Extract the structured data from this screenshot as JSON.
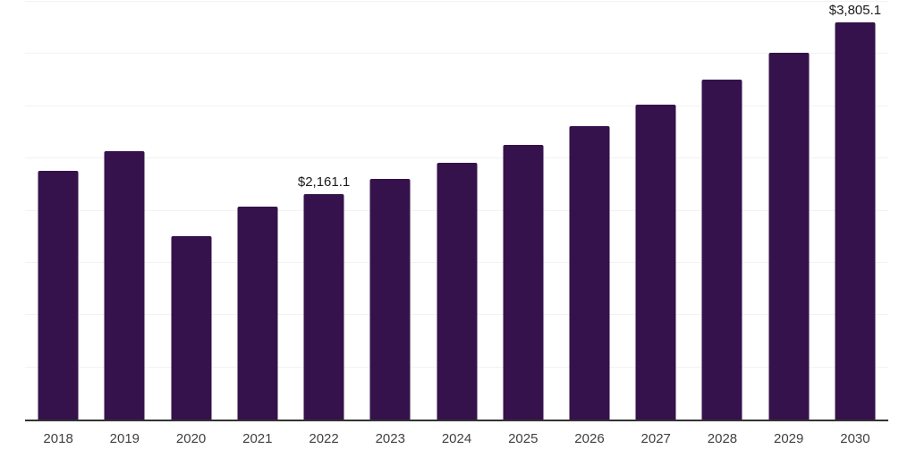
{
  "page": {
    "background_color": "#ffffff"
  },
  "chart_data": {
    "type": "bar",
    "title": "",
    "xlabel": "",
    "ylabel": "",
    "categories": [
      "2018",
      "2019",
      "2020",
      "2021",
      "2022",
      "2023",
      "2024",
      "2025",
      "2026",
      "2027",
      "2028",
      "2029",
      "2030"
    ],
    "values": [
      2385,
      2568,
      1754,
      2041,
      2161.1,
      2304,
      2459,
      2631,
      2807,
      3018,
      3253,
      3516,
      3805.1
    ],
    "data_labels": [
      {
        "category": "2022",
        "text": "$2,161.1"
      },
      {
        "category": "2030",
        "text": "$3,805.1"
      }
    ],
    "ylim": [
      0,
      4000
    ],
    "gridline_step": 500,
    "grid": true,
    "y_tick_labels_visible": false,
    "legend": "none",
    "bar_color": "#35124B",
    "axis_line_color": "#333333",
    "gridline_color": "#f2f2f2",
    "tick_label_color": "#404040",
    "data_label_color": "#1a1a1a"
  }
}
